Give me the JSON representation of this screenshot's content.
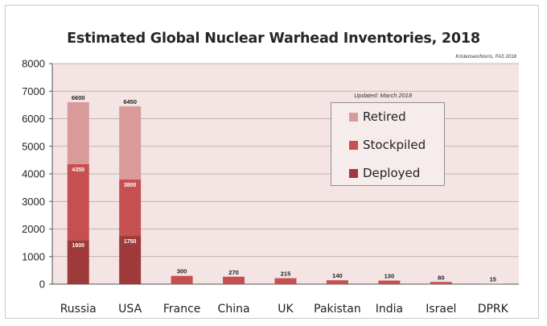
{
  "chart_data": {
    "type": "bar",
    "stacked": true,
    "title": "Estimated Global Nuclear Warhead Inventories, 2018",
    "source": "Kristensen/Norris, FAS 2018",
    "note": "Updated: March 2018",
    "categories": [
      "Russia",
      "USA",
      "France",
      "China",
      "UK",
      "Pakistan",
      "India",
      "Israel",
      "DPRK"
    ],
    "series": [
      {
        "name": "Deployed",
        "color": "#9e3a3a",
        "values": [
          1600,
          1750,
          null,
          null,
          null,
          null,
          null,
          null,
          null
        ]
      },
      {
        "name": "Stockpiled",
        "color": "#c65050",
        "values": [
          2750,
          2050,
          300,
          270,
          215,
          140,
          130,
          80,
          15
        ]
      },
      {
        "name": "Retired",
        "color": "#d99a9a",
        "values": [
          2250,
          2650,
          0,
          0,
          0,
          0,
          0,
          0,
          0
        ]
      }
    ],
    "totals": [
      "6600",
      "6450",
      "300",
      "270",
      "215",
      "140",
      "130",
      "80",
      "15"
    ],
    "segment_labels": [
      {
        "category": "Russia",
        "series": "Deployed",
        "text": "1600"
      },
      {
        "category": "Russia",
        "series": "Stockpiled",
        "text": "4350"
      },
      {
        "category": "USA",
        "series": "Deployed",
        "text": "1750"
      },
      {
        "category": "USA",
        "series": "Stockpiled",
        "text": "3800"
      }
    ],
    "ylim": [
      0,
      8000
    ],
    "yticks": [
      "0",
      "1000",
      "2000",
      "3000",
      "4000",
      "5000",
      "6000",
      "7000",
      "8000"
    ],
    "grid": true,
    "legend_position": "top-right",
    "plot_background": "#f4e4e4"
  }
}
